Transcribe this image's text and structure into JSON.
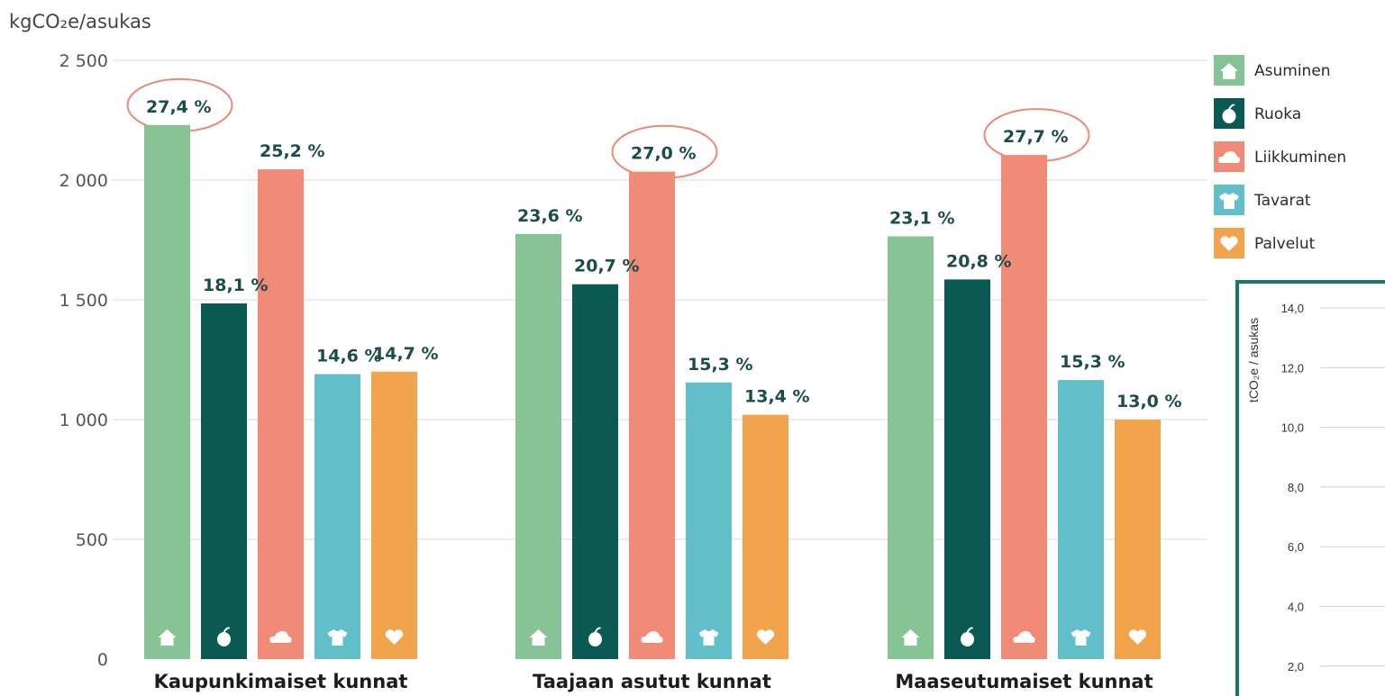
{
  "chart_data": [
    {
      "type": "bar",
      "ylabel": "kgCO₂e/asukas",
      "ylim": [
        0,
        2500
      ],
      "yticks": [
        "0",
        "500",
        "1 000",
        "1 500",
        "2 000",
        "2 500"
      ],
      "grid": true,
      "legend_position": "top-right",
      "categories": [
        "Kaupunkimaiset kunnat",
        "Taajaan asutut kunnat",
        "Maaseutumaiset kunnat"
      ],
      "series": [
        {
          "name": "Asuminen",
          "color": "#86c495",
          "icon": "house-icon",
          "values": [
            2230,
            1775,
            1765
          ],
          "labels": [
            "27,4 %",
            "23,6 %",
            "23,1 %"
          ]
        },
        {
          "name": "Ruoka",
          "color": "#0b5953",
          "icon": "apple-icon",
          "values": [
            1485,
            1565,
            1585
          ],
          "labels": [
            "18,1 %",
            "20,7 %",
            "20,8 %"
          ]
        },
        {
          "name": "Liikkuminen",
          "color": "#ef8b77",
          "icon": "car-icon",
          "values": [
            2045,
            2035,
            2105
          ],
          "labels": [
            "25,2 %",
            "27,0 %",
            "27,7 %"
          ]
        },
        {
          "name": "Tavarat",
          "color": "#62bfca",
          "icon": "tshirt-icon",
          "values": [
            1190,
            1155,
            1165
          ],
          "labels": [
            "14,6 %",
            "15,3 %",
            "15,3 %"
          ]
        },
        {
          "name": "Palvelut",
          "color": "#f2a44c",
          "icon": "heart-icon",
          "values": [
            1200,
            1020,
            1000
          ],
          "labels": [
            "14,7 %",
            "13,4 %",
            "13,0 %"
          ]
        }
      ],
      "highlighted": [
        {
          "category": "Kaupunkimaiset kunnat",
          "series": "Asuminen"
        },
        {
          "category": "Taajaan asutut kunnat",
          "series": "Liikkuminen"
        },
        {
          "category": "Maaseutumaiset kunnat",
          "series": "Liikkuminen"
        }
      ]
    },
    {
      "type": "bar",
      "ylabel": "tCO₂e / asukas",
      "yticks": [
        "2,0",
        "4,0",
        "6,0",
        "8,0",
        "10,0",
        "12,0",
        "14,0"
      ],
      "border_color": "#137a66",
      "partially_visible": true
    }
  ]
}
